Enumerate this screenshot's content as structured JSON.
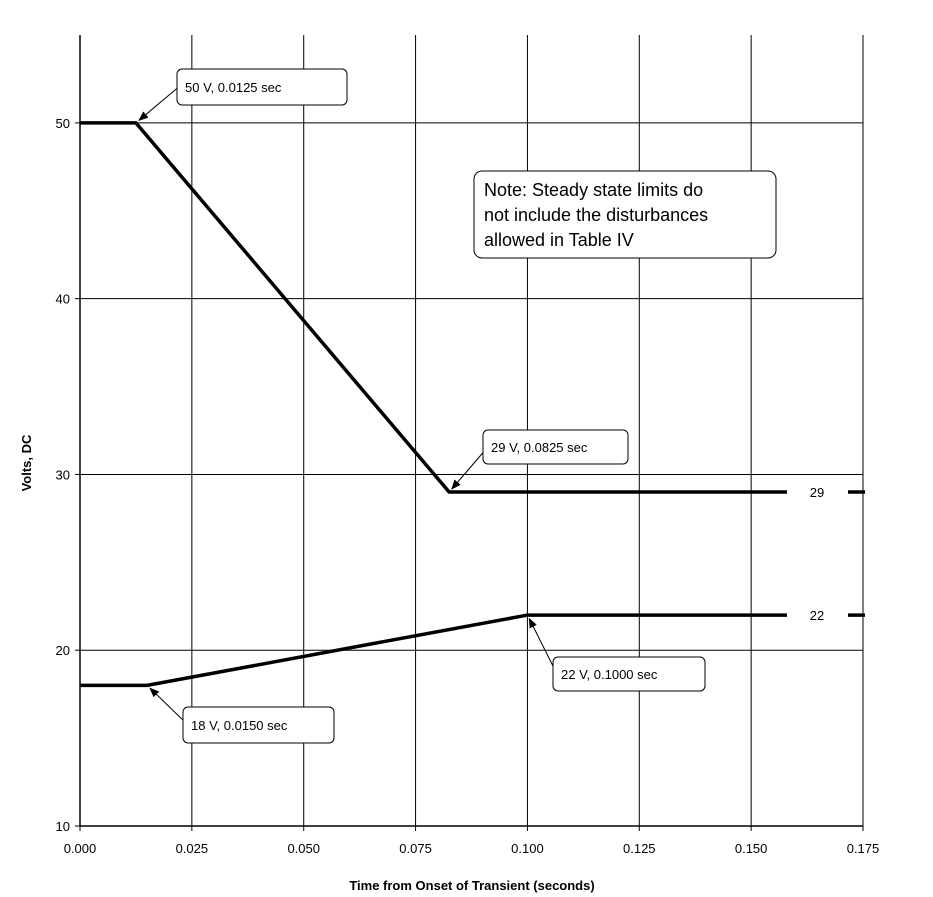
{
  "chart_data": {
    "type": "line",
    "xlabel": "Time from Onset of Transient (seconds)",
    "ylabel": "Volts, DC",
    "xlim": [
      0,
      0.175
    ],
    "ylim": [
      10,
      55
    ],
    "x_ticks": [
      0,
      0.025,
      0.05,
      0.075,
      0.1,
      0.125,
      0.15,
      0.175
    ],
    "x_tick_labels": [
      "0.000",
      "0.025",
      "0.050",
      "0.075",
      "0.100",
      "0.125",
      "0.150",
      "0.175"
    ],
    "y_ticks": [
      10,
      20,
      30,
      40,
      50
    ],
    "y_tick_labels": [
      "10",
      "20",
      "30",
      "40",
      "50"
    ],
    "grid": true,
    "series": [
      {
        "x": [
          0,
          0.0125,
          0.0825,
          0.158
        ],
        "y": [
          50,
          50,
          29,
          29
        ],
        "dashed_extension": {
          "x": [
            0.158,
            0.175
          ],
          "y": [
            29,
            29
          ]
        },
        "end_label": "29"
      },
      {
        "x": [
          0,
          0.015,
          0.1,
          0.158
        ],
        "y": [
          18,
          18,
          22,
          22
        ],
        "dashed_extension": {
          "x": [
            0.158,
            0.175
          ],
          "y": [
            22,
            22
          ]
        },
        "end_label": "22"
      }
    ],
    "annotations": [
      {
        "text": "50 V, 0.0125 sec",
        "point": [
          0.0125,
          50
        ]
      },
      {
        "text": "29 V, 0.0825 sec",
        "point": [
          0.0825,
          29
        ]
      },
      {
        "text": "22 V, 0.1000 sec",
        "point": [
          0.1,
          22
        ]
      },
      {
        "text": "18 V, 0.0150 sec",
        "point": [
          0.015,
          18
        ]
      }
    ],
    "note": {
      "lines": [
        "Note: Steady state limits do",
        "not include the disturbances",
        "allowed in Table IV"
      ]
    }
  }
}
